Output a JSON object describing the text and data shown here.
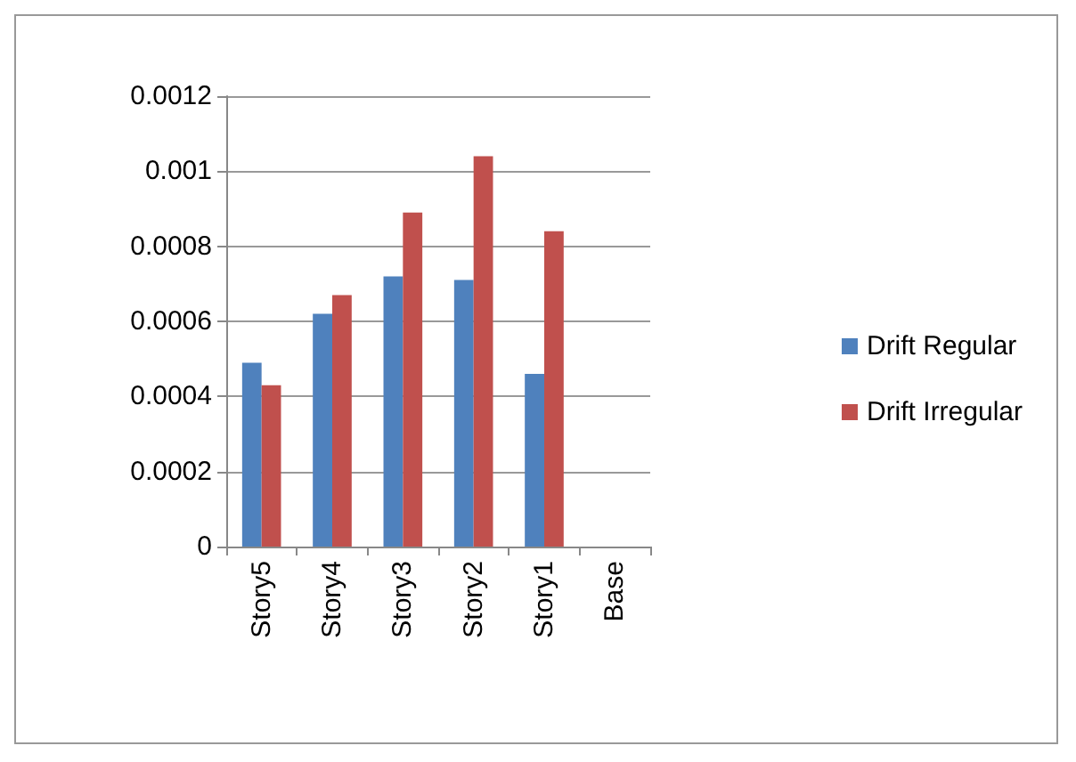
{
  "chart_data": {
    "type": "bar",
    "categories": [
      "Story5",
      "Story4",
      "Story3",
      "Story2",
      "Story1",
      "Base"
    ],
    "series": [
      {
        "name": "Drift Regular",
        "color": "#4f81bd",
        "values": [
          0.00049,
          0.00062,
          0.00072,
          0.00071,
          0.00046,
          0
        ]
      },
      {
        "name": "Drift Irregular",
        "color": "#c0504d",
        "values": [
          0.00043,
          0.00067,
          0.00089,
          0.00104,
          0.00084,
          0
        ]
      }
    ],
    "ylim": [
      0,
      0.0012
    ],
    "yticks": [
      0,
      0.0002,
      0.0004,
      0.0006,
      0.0008,
      0.001,
      0.0012
    ],
    "grid": "y",
    "legend": "right"
  }
}
